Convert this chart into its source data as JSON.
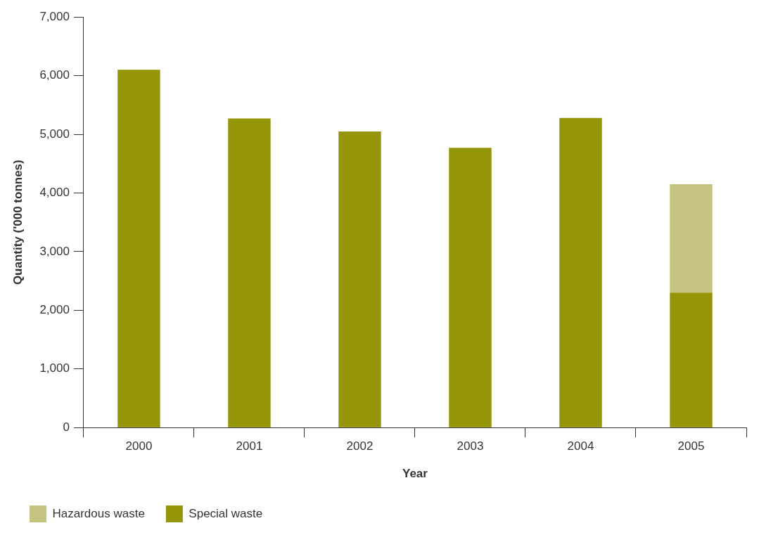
{
  "chart_data": {
    "type": "bar",
    "xlabel": "Year",
    "ylabel": "Quantity ('000 tonnes)",
    "categories": [
      "2000",
      "2001",
      "2002",
      "2003",
      "2004",
      "2005"
    ],
    "stacked": true,
    "series": [
      {
        "name": "Special waste",
        "color": "#949508",
        "values": [
          6100,
          5270,
          5050,
          4770,
          5280,
          2300
        ]
      },
      {
        "name": "Hazardous waste",
        "color": "#c4c480",
        "values": [
          null,
          null,
          null,
          null,
          null,
          1850
        ]
      }
    ],
    "ylim": [
      0,
      7000
    ],
    "yticks": [
      0,
      {
        "value": 1000,
        "label": "1,000"
      },
      {
        "value": 2000,
        "label": "2,000"
      },
      {
        "value": 3000,
        "label": "3,000"
      },
      {
        "value": 4000,
        "label": "4,000"
      },
      {
        "value": 5000,
        "label": "5,000"
      },
      {
        "value": 6000,
        "label": "6,000"
      },
      {
        "value": 7000,
        "label": "7,000"
      }
    ],
    "grid": false,
    "legend": "bottom left"
  }
}
